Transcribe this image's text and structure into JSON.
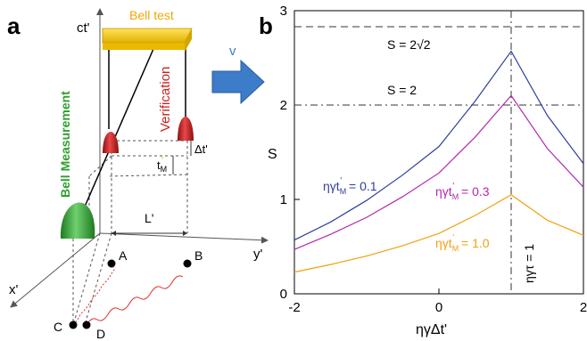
{
  "panel_a": {
    "panel_label": "a",
    "time_axis_label": "ct'",
    "y_axis_label": "y'",
    "x_axis_label": "x'",
    "bell_test_label": "Bell test",
    "bell_measurement_label": "Bell Measurement",
    "verification_label": "Verification",
    "delta_t_label": "Δt'",
    "tm_label_base": "t",
    "tm_label_sub": "M",
    "tm_label_prime": "'",
    "length_label": "L'",
    "point_labels": [
      "A",
      "B",
      "C",
      "D"
    ],
    "colors": {
      "bell_test_bar": "#f2c200",
      "bell_test_text": "#f0a800",
      "bell_measurement": "#2fa02f",
      "verification": "#cc1f1f",
      "photon_path": "#e03030"
    }
  },
  "arrow": {
    "velocity_label": "v",
    "color": "#3d7cc9"
  },
  "panel_b": {
    "panel_label": "b",
    "ylabel": "S",
    "xlabel": "ηγΔt'",
    "ann_tsirelson": "S = 2√2",
    "ann_classical": "S = 2",
    "ann_vertical": "ηγτ = 1"
  },
  "chart_data": {
    "type": "line",
    "xlim": [
      -2,
      2
    ],
    "ylim": [
      0,
      3
    ],
    "xticks": [
      -2,
      0,
      2
    ],
    "yticks": [
      0,
      1,
      2,
      3
    ],
    "reference_lines": {
      "horizontal": [
        2.83,
        2.0
      ],
      "vertical": [
        1.0
      ]
    },
    "series": [
      {
        "name": "ηγt'M = 0.1",
        "color": "#2f3e9e",
        "x": [
          -2,
          -1.5,
          -1,
          -0.5,
          0,
          0.5,
          1,
          1.5,
          2
        ],
        "y": [
          0.57,
          0.76,
          0.99,
          1.26,
          1.56,
          2.04,
          2.57,
          1.89,
          1.38
        ]
      },
      {
        "name": "ηγt'M = 0.3",
        "color": "#b02ab0",
        "x": [
          -2,
          -1.5,
          -1,
          -0.5,
          0,
          0.5,
          1,
          1.5,
          2
        ],
        "y": [
          0.47,
          0.63,
          0.81,
          1.03,
          1.28,
          1.66,
          2.1,
          1.54,
          1.13
        ]
      },
      {
        "name": "ηγt'M = 1.0",
        "color": "#f0a010",
        "x": [
          -2,
          -1.5,
          -1,
          -0.5,
          0,
          0.5,
          1,
          1.5,
          2
        ],
        "y": [
          0.23,
          0.31,
          0.4,
          0.51,
          0.64,
          0.83,
          1.05,
          0.78,
          0.62
        ]
      }
    ],
    "legend_labels": [
      {
        "base": "ηγt",
        "sub": "M",
        "prime": "'",
        "value": " = 0.1"
      },
      {
        "base": "ηγt",
        "sub": "M",
        "prime": "'",
        "value": " = 0.3"
      },
      {
        "base": "ηγt",
        "sub": "M",
        "prime": "'",
        "value": " = 1.0"
      }
    ]
  }
}
